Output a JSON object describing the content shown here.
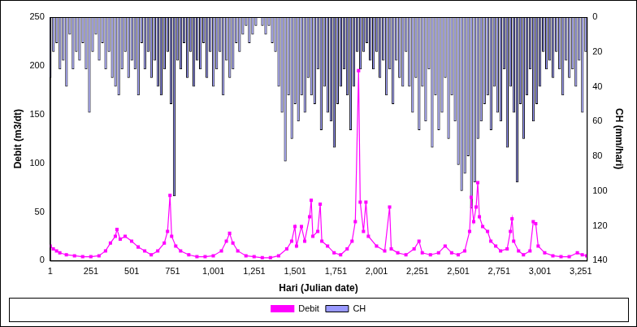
{
  "chart_data": {
    "type": "bar",
    "x_label": "Hari (Julian date)",
    "y_label": "Debit (m3/dt)",
    "y2_label": "CH (mm/hari)",
    "xlim": [
      1,
      3288
    ],
    "xticks": [
      1,
      251,
      501,
      751,
      1001,
      1251,
      1501,
      1751,
      2001,
      2251,
      2501,
      2751,
      3001,
      3251
    ],
    "ylim": [
      0,
      250
    ],
    "yticks": [
      0,
      50,
      100,
      150,
      200,
      250
    ],
    "y2lim": [
      140,
      0
    ],
    "y2ticks": [
      0,
      20,
      40,
      60,
      80,
      100,
      120,
      140
    ],
    "grid": false,
    "legend": "bottom",
    "series": [
      {
        "name": "CH",
        "type": "bar",
        "axis": "y2",
        "color": "#9999ff",
        "x": [
          1,
          21,
          41,
          61,
          81,
          101,
          121,
          141,
          161,
          181,
          201,
          221,
          241,
          261,
          281,
          301,
          321,
          341,
          361,
          381,
          401,
          421,
          441,
          461,
          481,
          501,
          521,
          541,
          561,
          581,
          601,
          621,
          641,
          661,
          681,
          701,
          721,
          741,
          761,
          781,
          801,
          821,
          841,
          861,
          881,
          901,
          921,
          941,
          961,
          981,
          1001,
          1021,
          1041,
          1061,
          1081,
          1101,
          1121,
          1141,
          1161,
          1181,
          1201,
          1221,
          1241,
          1261,
          1281,
          1301,
          1321,
          1341,
          1361,
          1381,
          1401,
          1421,
          1441,
          1461,
          1481,
          1501,
          1521,
          1541,
          1561,
          1581,
          1601,
          1621,
          1641,
          1661,
          1681,
          1701,
          1721,
          1741,
          1761,
          1781,
          1801,
          1821,
          1841,
          1861,
          1881,
          1901,
          1921,
          1941,
          1961,
          1981,
          2001,
          2021,
          2041,
          2061,
          2081,
          2101,
          2121,
          2141,
          2161,
          2181,
          2201,
          2221,
          2241,
          2261,
          2281,
          2301,
          2321,
          2341,
          2361,
          2381,
          2401,
          2421,
          2441,
          2461,
          2481,
          2501,
          2521,
          2541,
          2561,
          2581,
          2601,
          2621,
          2641,
          2661,
          2681,
          2701,
          2721,
          2741,
          2761,
          2781,
          2801,
          2821,
          2841,
          2861,
          2881,
          2901,
          2921,
          2941,
          2961,
          2981,
          3001,
          3021,
          3041,
          3061,
          3081,
          3101,
          3121,
          3141,
          3161,
          3181,
          3201,
          3221,
          3241,
          3261,
          3281
        ],
        "values": [
          35,
          20,
          15,
          30,
          25,
          40,
          10,
          30,
          20,
          25,
          15,
          30,
          55,
          20,
          10,
          25,
          15,
          30,
          20,
          35,
          40,
          45,
          30,
          20,
          35,
          25,
          30,
          45,
          15,
          30,
          20,
          35,
          25,
          40,
          45,
          30,
          20,
          50,
          103,
          25,
          30,
          15,
          35,
          20,
          40,
          25,
          30,
          15,
          35,
          20,
          40,
          30,
          20,
          45,
          25,
          35,
          30,
          15,
          20,
          10,
          5,
          15,
          10,
          5,
          0,
          5,
          10,
          5,
          15,
          20,
          40,
          55,
          83,
          45,
          70,
          50,
          60,
          45,
          55,
          35,
          45,
          50,
          30,
          65,
          40,
          55,
          60,
          75,
          50,
          40,
          30,
          45,
          65,
          40,
          20,
          30,
          20,
          15,
          25,
          30,
          20,
          35,
          25,
          45,
          30,
          50,
          25,
          35,
          40,
          20,
          40,
          55,
          35,
          65,
          40,
          60,
          30,
          75,
          45,
          65,
          55,
          35,
          70,
          45,
          60,
          85,
          100,
          90,
          80,
          110,
          95,
          70,
          60,
          50,
          45,
          65,
          40,
          55,
          60,
          30,
          75,
          40,
          55,
          95,
          50,
          70,
          45,
          30,
          60,
          50,
          40,
          20,
          30,
          25,
          35,
          20,
          30,
          45,
          25,
          35,
          30,
          40,
          25,
          55,
          20
        ]
      },
      {
        "name": "Debit",
        "type": "line",
        "color": "#ff00ff",
        "marker": "square",
        "x": [
          1,
          20,
          40,
          60,
          100,
          150,
          200,
          250,
          300,
          340,
          370,
          400,
          410,
          430,
          460,
          500,
          540,
          580,
          620,
          660,
          700,
          720,
          735,
          745,
          770,
          800,
          850,
          900,
          950,
          1000,
          1050,
          1080,
          1100,
          1120,
          1150,
          1200,
          1250,
          1300,
          1350,
          1400,
          1450,
          1480,
          1500,
          1510,
          1540,
          1560,
          1590,
          1600,
          1610,
          1640,
          1655,
          1665,
          1700,
          1740,
          1780,
          1820,
          1850,
          1870,
          1890,
          1900,
          1920,
          1935,
          1950,
          2000,
          2050,
          2080,
          2090,
          2130,
          2180,
          2230,
          2260,
          2280,
          2330,
          2380,
          2420,
          2460,
          2500,
          2540,
          2570,
          2580,
          2595,
          2610,
          2620,
          2630,
          2650,
          2680,
          2700,
          2730,
          2760,
          2800,
          2820,
          2830,
          2840,
          2870,
          2900,
          2940,
          2960,
          2975,
          2990,
          3030,
          3080,
          3130,
          3180,
          3230,
          3260,
          3287
        ],
        "values": [
          15,
          12,
          10,
          8,
          6,
          5,
          4,
          4,
          5,
          10,
          18,
          25,
          32,
          22,
          25,
          20,
          14,
          10,
          6,
          10,
          18,
          30,
          67,
          25,
          15,
          10,
          6,
          4,
          4,
          5,
          10,
          20,
          28,
          18,
          10,
          5,
          4,
          3,
          3,
          5,
          12,
          20,
          35,
          15,
          35,
          20,
          45,
          62,
          25,
          30,
          58,
          20,
          15,
          8,
          6,
          12,
          20,
          40,
          195,
          60,
          30,
          60,
          25,
          15,
          10,
          55,
          12,
          8,
          6,
          12,
          20,
          8,
          6,
          8,
          15,
          8,
          6,
          10,
          30,
          65,
          40,
          55,
          80,
          45,
          35,
          30,
          20,
          15,
          10,
          12,
          30,
          43,
          20,
          10,
          6,
          10,
          40,
          38,
          15,
          8,
          5,
          4,
          4,
          8,
          6,
          5
        ]
      }
    ]
  }
}
